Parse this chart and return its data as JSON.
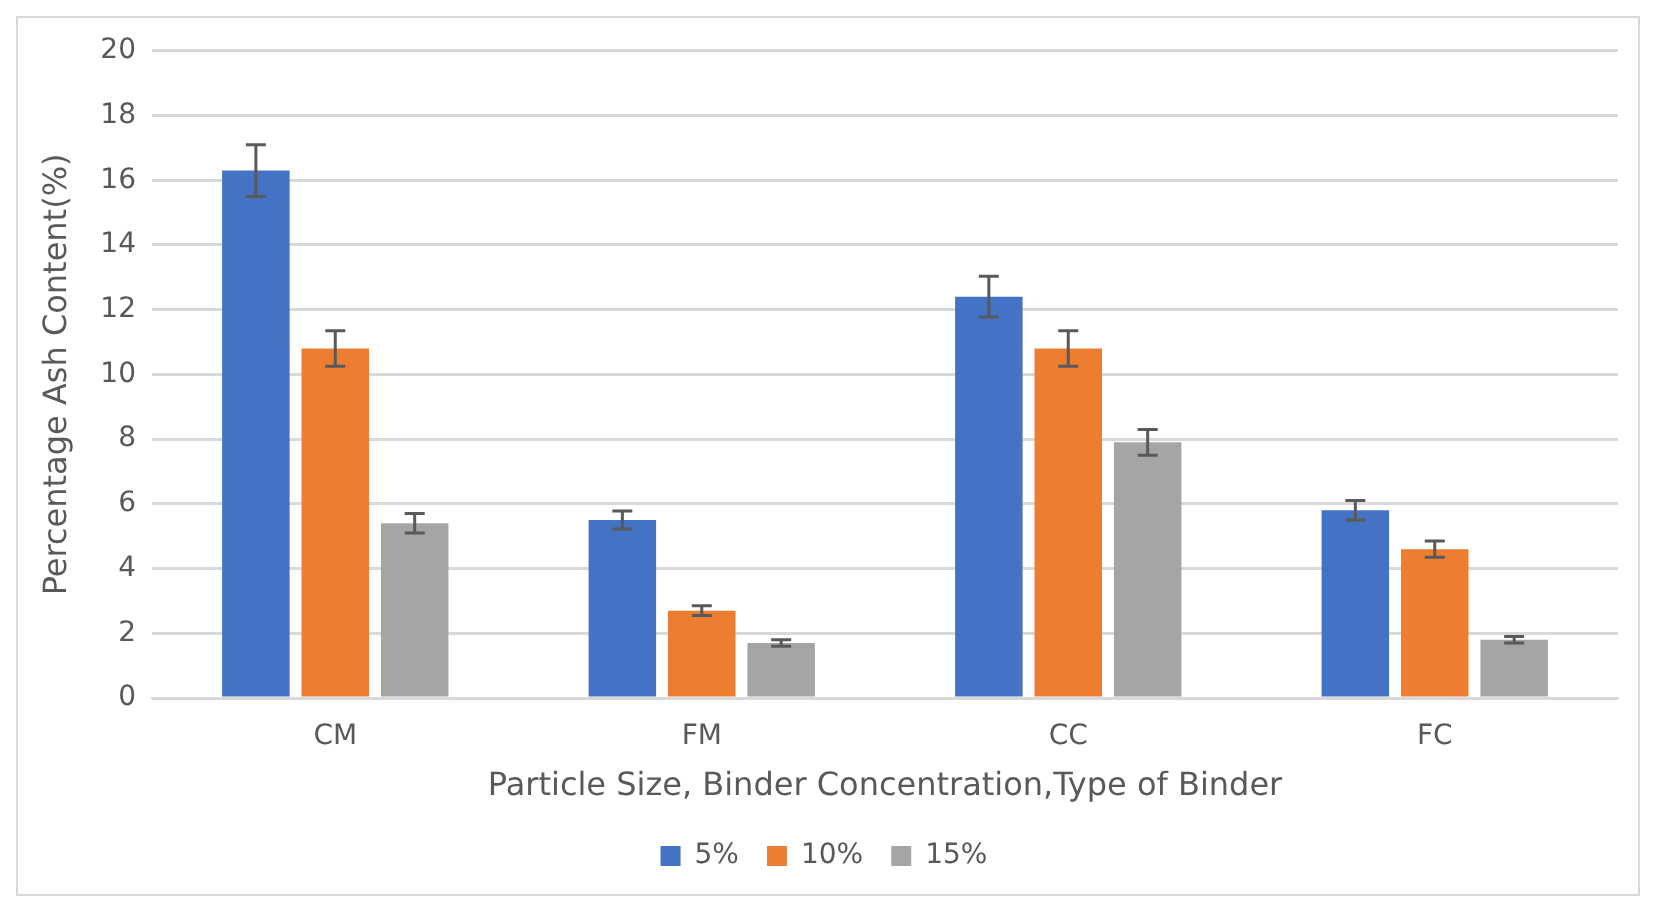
{
  "chart_data": {
    "type": "bar",
    "xlabel": "Particle Size, Binder Concentration,Type of Binder",
    "ylabel": "Percentage Ash Content(%)",
    "categories": [
      "CM",
      "FM",
      "CC",
      "FC"
    ],
    "series": [
      {
        "name": "5%",
        "color": "#4472c4",
        "values": [
          16.3,
          5.5,
          12.4,
          5.8
        ],
        "errors": [
          0.8,
          0.28,
          0.63,
          0.3
        ]
      },
      {
        "name": "10%",
        "color": "#ed7d31",
        "values": [
          10.8,
          2.7,
          10.8,
          4.6
        ],
        "errors": [
          0.55,
          0.15,
          0.55,
          0.25
        ]
      },
      {
        "name": "15%",
        "color": "#a5a5a5",
        "values": [
          5.4,
          1.7,
          7.9,
          1.8
        ],
        "errors": [
          0.3,
          0.1,
          0.4,
          0.1
        ]
      }
    ],
    "ylim": [
      0,
      20
    ],
    "yticks": [
      0,
      2,
      4,
      6,
      8,
      10,
      12,
      14,
      16,
      18,
      20
    ],
    "grid": "y",
    "legend": "bottom"
  }
}
